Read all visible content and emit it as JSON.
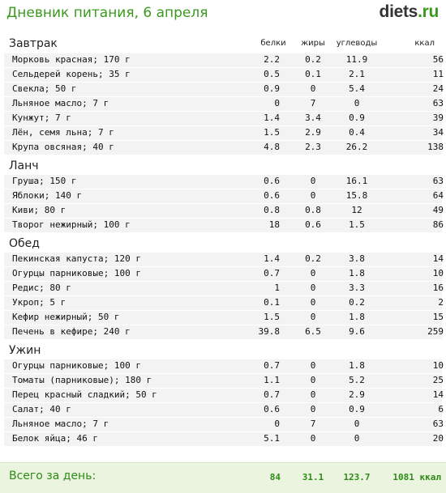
{
  "header": {
    "title": "Дневник питания, 6 апреля",
    "logo_part1": "diets",
    "logo_part2": ".ru"
  },
  "columns": {
    "protein": "белки",
    "fat": "жиры",
    "carbs": "углеводы",
    "kcal": "ккал"
  },
  "sections": [
    {
      "title": "Завтрак",
      "items": [
        {
          "name": "Морковь красная; 170 г",
          "p": "2.2",
          "f": "0.2",
          "c": "11.9",
          "k": "56"
        },
        {
          "name": "Сельдерей корень; 35 г",
          "p": "0.5",
          "f": "0.1",
          "c": "2.1",
          "k": "11"
        },
        {
          "name": "Свекла; 50 г",
          "p": "0.9",
          "f": "0",
          "c": "5.4",
          "k": "24"
        },
        {
          "name": "Льняное масло; 7 г",
          "p": "0",
          "f": "7",
          "c": "0",
          "k": "63"
        },
        {
          "name": "Кунжут; 7 г",
          "p": "1.4",
          "f": "3.4",
          "c": "0.9",
          "k": "39"
        },
        {
          "name": "Лён, семя льна; 7 г",
          "p": "1.5",
          "f": "2.9",
          "c": "0.4",
          "k": "34"
        },
        {
          "name": "Крупа овсяная; 40 г",
          "p": "4.8",
          "f": "2.3",
          "c": "26.2",
          "k": "138"
        }
      ]
    },
    {
      "title": "Ланч",
      "items": [
        {
          "name": "Груша; 150 г",
          "p": "0.6",
          "f": "0",
          "c": "16.1",
          "k": "63"
        },
        {
          "name": "Яблоки; 140 г",
          "p": "0.6",
          "f": "0",
          "c": "15.8",
          "k": "64"
        },
        {
          "name": "Киви; 80 г",
          "p": "0.8",
          "f": "0.8",
          "c": "12",
          "k": "49"
        },
        {
          "name": "Творог нежирный; 100 г",
          "p": "18",
          "f": "0.6",
          "c": "1.5",
          "k": "86"
        }
      ]
    },
    {
      "title": "Обед",
      "items": [
        {
          "name": "Пекинская капуста; 120 г",
          "p": "1.4",
          "f": "0.2",
          "c": "3.8",
          "k": "14"
        },
        {
          "name": "Огурцы парниковые; 100 г",
          "p": "0.7",
          "f": "0",
          "c": "1.8",
          "k": "10"
        },
        {
          "name": "Редис; 80 г",
          "p": "1",
          "f": "0",
          "c": "3.3",
          "k": "16"
        },
        {
          "name": "Укроп; 5 г",
          "p": "0.1",
          "f": "0",
          "c": "0.2",
          "k": "2"
        },
        {
          "name": "Кефир нежирный; 50 г",
          "p": "1.5",
          "f": "0",
          "c": "1.8",
          "k": "15"
        },
        {
          "name": "Печень в кефире; 240 г",
          "p": "39.8",
          "f": "6.5",
          "c": "9.6",
          "k": "259"
        }
      ]
    },
    {
      "title": "Ужин",
      "items": [
        {
          "name": "Огурцы парниковые; 100 г",
          "p": "0.7",
          "f": "0",
          "c": "1.8",
          "k": "10"
        },
        {
          "name": "Томаты (парниковые); 180 г",
          "p": "1.1",
          "f": "0",
          "c": "5.2",
          "k": "25"
        },
        {
          "name": "Перец красный сладкий; 50 г",
          "p": "0.7",
          "f": "0",
          "c": "2.9",
          "k": "14"
        },
        {
          "name": "Салат; 40 г",
          "p": "0.6",
          "f": "0",
          "c": "0.9",
          "k": "6"
        },
        {
          "name": "Льняное масло; 7 г",
          "p": "0",
          "f": "7",
          "c": "0",
          "k": "63"
        },
        {
          "name": "Белок яйца; 46 г",
          "p": "5.1",
          "f": "0",
          "c": "0",
          "k": "20"
        }
      ]
    }
  ],
  "footer": {
    "title": "Всего за день:",
    "protein": "84",
    "fat": "31.1",
    "carbs": "123.7",
    "kcal": "1081 ккал"
  }
}
